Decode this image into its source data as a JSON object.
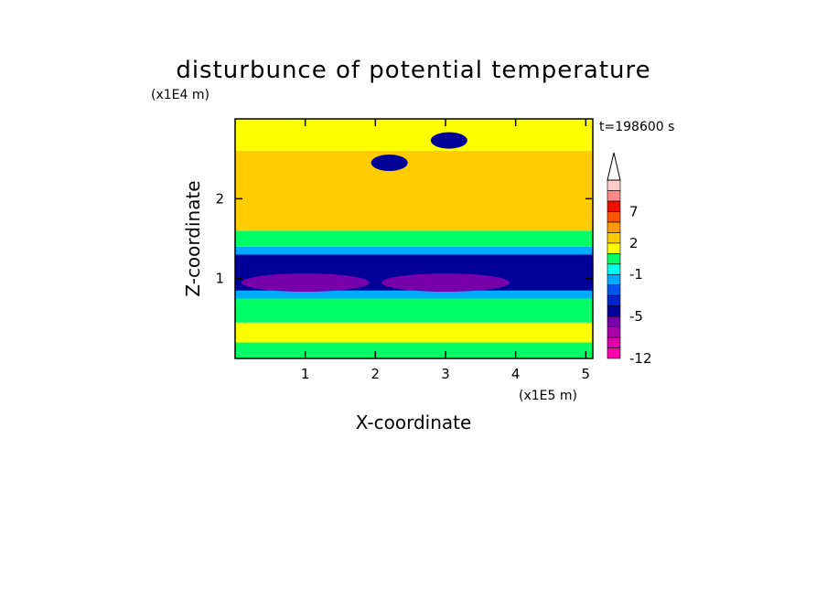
{
  "chart_data": {
    "type": "heatmap",
    "title": "disturbunce of potential temperature",
    "xlabel": "X-coordinate",
    "ylabel": "Z-coordinate",
    "x_unit": "(x1E5 m)",
    "y_unit": "(x1E4 m)",
    "time_label": "t=198600 s",
    "x_ticks": [
      1,
      2,
      3,
      4,
      5
    ],
    "y_ticks": [
      1,
      2
    ],
    "xlim": [
      0,
      5.1
    ],
    "ylim": [
      0,
      3.0
    ],
    "colorbar": {
      "tick_labels": [
        "7",
        "2",
        "-1",
        "-5",
        "-12"
      ],
      "tick_values": [
        7,
        2,
        -1,
        -5,
        -12
      ],
      "levels": [
        -12,
        -10,
        -8,
        -6,
        -5,
        -4,
        -3,
        -2,
        -1,
        0,
        1,
        2,
        3,
        5,
        7,
        9,
        11
      ],
      "colors": [
        "#ff00aa",
        "#dd00aa",
        "#aa00aa",
        "#7700aa",
        "#000099",
        "#0022cc",
        "#0055ee",
        "#00aaff",
        "#00ffee",
        "#00ff66",
        "#ffff00",
        "#ffcc00",
        "#ff9900",
        "#ff5500",
        "#ee1100",
        "#ff8888",
        "#ffcccc"
      ],
      "extend": "max"
    },
    "bands": [
      {
        "z_range": [
          0.0,
          0.2
        ],
        "value": 0
      },
      {
        "z_range": [
          0.2,
          0.45
        ],
        "value": 1
      },
      {
        "z_range": [
          0.45,
          0.75
        ],
        "value": 0
      },
      {
        "z_range": [
          0.75,
          0.85
        ],
        "value": -1.5
      },
      {
        "z_range": [
          0.85,
          1.3
        ],
        "value": -4.5
      },
      {
        "z_range": [
          1.3,
          1.4
        ],
        "value": -1.5
      },
      {
        "z_range": [
          1.4,
          1.6
        ],
        "value": 0
      },
      {
        "z_range": [
          1.6,
          2.6
        ],
        "value": 2
      },
      {
        "z_range": [
          2.6,
          3.0
        ],
        "value": 1
      }
    ],
    "features": [
      {
        "x": 3.05,
        "z": 2.73,
        "value": -4.5
      },
      {
        "x": 2.2,
        "z": 2.45,
        "value": -4.5
      },
      {
        "x": 1.0,
        "z": 0.95,
        "value": -5.5
      },
      {
        "x": 3.0,
        "z": 0.95,
        "value": -5.5
      }
    ]
  }
}
